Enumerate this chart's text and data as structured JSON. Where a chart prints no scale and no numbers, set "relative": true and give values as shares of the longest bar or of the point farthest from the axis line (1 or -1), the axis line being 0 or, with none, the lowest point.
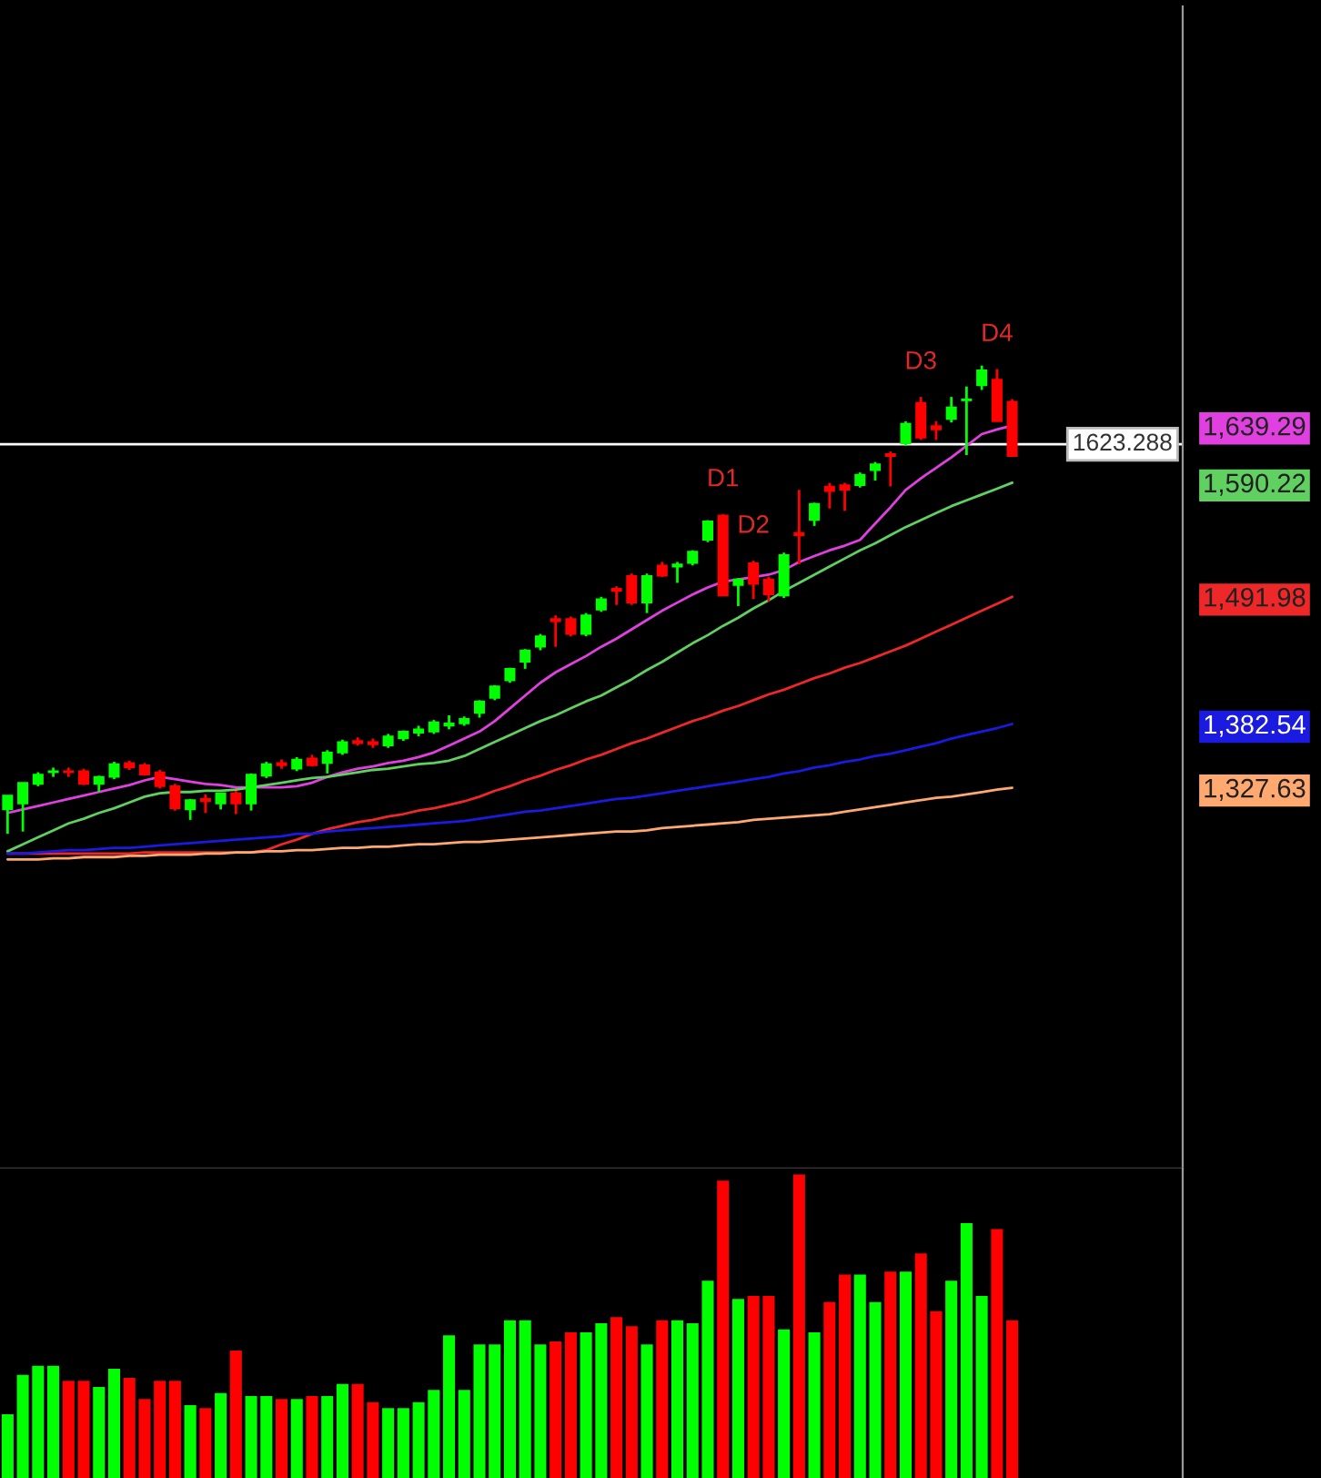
{
  "chart_data": [
    {
      "type": "candlestick",
      "categories": [
        null,
        null,
        null,
        null,
        null,
        null,
        null,
        null,
        null,
        null,
        null,
        null,
        null,
        null,
        null,
        null,
        null,
        null,
        null,
        null,
        null,
        null,
        null,
        null,
        null,
        null,
        null,
        null,
        null,
        null,
        null,
        null,
        null,
        null,
        null,
        null,
        null,
        null,
        null,
        null,
        null,
        null,
        null,
        null,
        null,
        null,
        null,
        null,
        null,
        null,
        null,
        null,
        null,
        null,
        null,
        null,
        null,
        null,
        null,
        null,
        null,
        null,
        null,
        null,
        null,
        null,
        null
      ],
      "ohlc": [
        [
          1309,
          1321,
          1288,
          1321
        ],
        [
          1314,
          1332,
          1290,
          1332
        ],
        [
          1331,
          1341,
          1329,
          1339
        ],
        [
          1341,
          1345,
          1337,
          1342
        ],
        [
          1342,
          1345,
          1337,
          1341
        ],
        [
          1342,
          1344,
          1330,
          1331
        ],
        [
          1331,
          1338,
          1324,
          1337
        ],
        [
          1337,
          1350,
          1335,
          1348
        ],
        [
          1349,
          1351,
          1343,
          1345
        ],
        [
          1347,
          1349,
          1338,
          1339
        ],
        [
          1341,
          1343,
          1327,
          1329
        ],
        [
          1329,
          1331,
          1308,
          1310
        ],
        [
          1309,
          1318,
          1300,
          1317
        ],
        [
          1318,
          1322,
          1306,
          1316
        ],
        [
          1314,
          1323,
          1309,
          1323
        ],
        [
          1323,
          1325,
          1305,
          1314
        ],
        [
          1314,
          1340,
          1308,
          1339
        ],
        [
          1338,
          1350,
          1336,
          1348
        ],
        [
          1349,
          1352,
          1344,
          1347
        ],
        [
          1344,
          1354,
          1342,
          1352
        ],
        [
          1353,
          1356,
          1346,
          1347
        ],
        [
          1349,
          1360,
          1340,
          1358
        ],
        [
          1358,
          1369,
          1356,
          1367
        ],
        [
          1368,
          1371,
          1364,
          1366
        ],
        [
          1367,
          1370,
          1362,
          1365
        ],
        [
          1364,
          1374,
          1362,
          1372
        ],
        [
          1370,
          1377,
          1368,
          1376
        ],
        [
          1375,
          1381,
          1372,
          1378
        ],
        [
          1376,
          1386,
          1374,
          1384
        ],
        [
          1381,
          1390,
          1378,
          1383
        ],
        [
          1383,
          1389,
          1381,
          1387
        ],
        [
          1392,
          1403,
          1388,
          1402
        ],
        [
          1405,
          1416,
          1403,
          1415
        ],
        [
          1420,
          1431,
          1418,
          1430
        ],
        [
          1436,
          1447,
          1430,
          1446
        ],
        [
          1449,
          1460,
          1446,
          1458
        ],
        [
          1473,
          1476,
          1449,
          1471
        ],
        [
          1473,
          1475,
          1458,
          1460
        ],
        [
          1460,
          1478,
          1458,
          1476
        ],
        [
          1481,
          1492,
          1479,
          1490
        ],
        [
          1499,
          1501,
          1485,
          1497
        ],
        [
          1510,
          1512,
          1485,
          1487
        ],
        [
          1487,
          1512,
          1478,
          1510
        ],
        [
          1519,
          1522,
          1509,
          1510
        ],
        [
          1518,
          1522,
          1504,
          1520
        ],
        [
          1521,
          1532,
          1519,
          1531
        ],
        [
          1541,
          1558,
          1539,
          1557
        ],
        [
          1562,
          1563,
          1493,
          1493
        ],
        [
          1502,
          1508,
          1484,
          1507
        ],
        [
          1521,
          1523,
          1490,
          1503
        ],
        [
          1507,
          1509,
          1488,
          1494
        ],
        [
          1493,
          1530,
          1491,
          1528
        ],
        [
          1547,
          1584,
          1520,
          1545
        ],
        [
          1558,
          1573,
          1553,
          1572
        ],
        [
          1587,
          1590,
          1568,
          1583
        ],
        [
          1588,
          1590,
          1566,
          1584
        ],
        [
          1588,
          1599,
          1586,
          1597
        ],
        [
          1601,
          1608,
          1592,
          1606
        ],
        [
          1615,
          1617,
          1587,
          1613
        ],
        [
          1624,
          1643,
          1622,
          1641
        ],
        [
          1659,
          1664,
          1627,
          1629
        ],
        [
          1639,
          1643,
          1627,
          1636
        ],
        [
          1645,
          1664,
          1642,
          1655
        ],
        [
          1661,
          1673,
          1614,
          1662
        ],
        [
          1674,
          1691,
          1670,
          1687
        ],
        [
          1679,
          1688,
          1643,
          1643
        ],
        [
          1660,
          1662,
          1613,
          1613
        ]
      ],
      "colors": [
        "#00ff00",
        "#00ff00",
        "#00ff00",
        "#00ff00",
        "#ff0000",
        "#ff0000",
        "#00ff00",
        "#00ff00",
        "#ff0000",
        "#ff0000",
        "#ff0000",
        "#ff0000",
        "#00ff00",
        "#ff0000",
        "#00ff00",
        "#ff0000",
        "#00ff00",
        "#00ff00",
        "#ff0000",
        "#00ff00",
        "#ff0000",
        "#00ff00",
        "#00ff00",
        "#ff0000",
        "#ff0000",
        "#00ff00",
        "#00ff00",
        "#00ff00",
        "#00ff00",
        "#00ff00",
        "#00ff00",
        "#00ff00",
        "#00ff00",
        "#00ff00",
        "#00ff00",
        "#00ff00",
        "#ff0000",
        "#ff0000",
        "#00ff00",
        "#00ff00",
        "#ff0000",
        "#ff0000",
        "#00ff00",
        "#ff0000",
        "#00ff00",
        "#00ff00",
        "#00ff00",
        "#ff0000",
        "#00ff00",
        "#ff0000",
        "#ff0000",
        "#00ff00",
        "#ff0000",
        "#00ff00",
        "#ff0000",
        "#ff0000",
        "#00ff00",
        "#00ff00",
        "#ff0000",
        "#00ff00",
        "#ff0000",
        "#ff0000",
        "#00ff00",
        "#00ff00",
        "#00ff00",
        "#ff0000",
        "#ff0000"
      ],
      "value_labels": [
        null,
        null,
        null,
        null,
        null,
        null,
        null,
        null,
        null,
        null,
        null,
        null,
        null,
        null,
        null,
        null,
        null,
        null,
        null,
        null,
        null,
        null,
        null,
        null,
        null,
        null,
        null,
        null,
        null,
        null,
        null,
        null,
        null,
        null,
        null,
        null,
        null,
        null,
        null,
        null,
        null,
        null,
        null,
        null,
        null,
        null,
        null,
        "D1",
        null,
        "D2",
        null,
        null,
        null,
        null,
        null,
        null,
        null,
        null,
        null,
        null,
        "D3",
        null,
        null,
        null,
        null,
        "D4",
        null
      ],
      "series": [
        {
          "type": "line",
          "color": "#e040e0",
          "values": [
            1306,
            1309,
            1312,
            1315,
            1318,
            1321,
            1324,
            1327,
            1330,
            1334,
            1337,
            1335,
            1333,
            1331,
            1330,
            1328,
            1328,
            1328,
            1328,
            1329,
            1332,
            1337,
            1341,
            1344,
            1346,
            1349,
            1351,
            1354,
            1358,
            1364,
            1370,
            1376,
            1385,
            1396,
            1407,
            1418,
            1427,
            1434,
            1441,
            1449,
            1456,
            1464,
            1472,
            1480,
            1487,
            1494,
            1500,
            1505,
            1507,
            1509,
            1511,
            1515,
            1522,
            1527,
            1532,
            1536,
            1541,
            1555,
            1569,
            1584,
            1594,
            1603,
            1612,
            1622,
            1632,
            1636,
            1639.29
          ]
        },
        {
          "type": "line",
          "color": "#60d060",
          "values": [
            1273,
            1279,
            1285,
            1291,
            1297,
            1301,
            1306,
            1310,
            1315,
            1320,
            1323,
            1324,
            1324,
            1325,
            1325,
            1326,
            1328,
            1330,
            1332,
            1334,
            1336,
            1337,
            1339,
            1341,
            1343,
            1344,
            1346,
            1348,
            1349,
            1351,
            1355,
            1361,
            1367,
            1373,
            1379,
            1385,
            1390,
            1396,
            1402,
            1407,
            1414,
            1421,
            1429,
            1436,
            1444,
            1452,
            1459,
            1467,
            1474,
            1482,
            1489,
            1497,
            1504,
            1511,
            1518,
            1525,
            1532,
            1538,
            1545,
            1552,
            1558,
            1564,
            1570,
            1575,
            1580,
            1585,
            1590.22
          ]
        },
        {
          "type": "line",
          "color": "#ee2828",
          "values": [
            1271,
            1271,
            1271,
            1271,
            1271,
            1271,
            1271,
            1271,
            1271,
            1272,
            1272,
            1272,
            1272,
            1272,
            1272,
            1272,
            1272,
            1274,
            1279,
            1283,
            1288,
            1292,
            1295,
            1298,
            1300,
            1303,
            1305,
            1308,
            1310,
            1313,
            1316,
            1320,
            1325,
            1329,
            1334,
            1338,
            1343,
            1347,
            1352,
            1356,
            1361,
            1366,
            1370,
            1375,
            1380,
            1385,
            1389,
            1394,
            1398,
            1403,
            1408,
            1412,
            1417,
            1422,
            1426,
            1431,
            1435,
            1440,
            1445,
            1450,
            1456,
            1462,
            1468,
            1474,
            1480,
            1486,
            1491.98
          ]
        },
        {
          "type": "line",
          "color": "#1a1ae0",
          "values": [
            1271,
            1271,
            1272,
            1273,
            1274,
            1274,
            1275,
            1276,
            1276,
            1277,
            1278,
            1279,
            1280,
            1281,
            1282,
            1283,
            1284,
            1285,
            1286,
            1288,
            1288,
            1290,
            1291,
            1292,
            1293,
            1294,
            1295,
            1296,
            1297,
            1298,
            1299,
            1301,
            1303,
            1305,
            1307,
            1308,
            1310,
            1312,
            1314,
            1316,
            1318,
            1319,
            1321,
            1323,
            1325,
            1327,
            1329,
            1331,
            1333,
            1335,
            1337,
            1340,
            1342,
            1345,
            1347,
            1350,
            1352,
            1355,
            1357,
            1360,
            1363,
            1366,
            1370,
            1373,
            1376,
            1379,
            1382.54
          ]
        },
        {
          "type": "line",
          "color": "#ffa870",
          "values": [
            1266,
            1266,
            1266,
            1267,
            1267,
            1268,
            1268,
            1268,
            1269,
            1269,
            1270,
            1270,
            1270,
            1271,
            1271,
            1272,
            1272,
            1273,
            1273,
            1274,
            1274,
            1275,
            1276,
            1276,
            1277,
            1277,
            1278,
            1279,
            1279,
            1280,
            1281,
            1281,
            1282,
            1283,
            1284,
            1285,
            1286,
            1287,
            1288,
            1289,
            1290,
            1290,
            1291,
            1293,
            1294,
            1295,
            1296,
            1297,
            1298,
            1300,
            1301,
            1302,
            1303,
            1304,
            1305,
            1307,
            1309,
            1311,
            1313,
            1315,
            1317,
            1319,
            1320,
            1322,
            1324,
            1326,
            1327.63
          ]
        }
      ],
      "ylim": [
        1000,
        2000
      ],
      "yticks": [
        {
          "value": 1639.29,
          "label": "1,639.29"
        },
        {
          "value": 1590.22,
          "label": "1,590.22"
        },
        {
          "value": 1491.98,
          "label": "1,491.98"
        },
        {
          "value": 1382.54,
          "label": "1,382.54"
        },
        {
          "value": 1327.63,
          "label": "1,327.63"
        }
      ],
      "ref_lines": [
        {
          "axis": "y",
          "value": 1623.288,
          "label": "1623.288",
          "color": "#ffffff"
        }
      ],
      "tick_labels": "y"
    },
    {
      "type": "bar",
      "relative": true,
      "tick_labels": false,
      "categories": [
        null,
        null,
        null,
        null,
        null,
        null,
        null,
        null,
        null,
        null,
        null,
        null,
        null,
        null,
        null,
        null,
        null,
        null,
        null,
        null,
        null,
        null,
        null,
        null,
        null,
        null,
        null,
        null,
        null,
        null,
        null,
        null,
        null,
        null,
        null,
        null,
        null,
        null,
        null,
        null,
        null,
        null,
        null,
        null,
        null,
        null,
        null,
        null,
        null,
        null,
        null,
        null,
        null,
        null,
        null,
        null,
        null,
        null,
        null,
        null,
        null,
        null,
        null,
        null,
        null,
        null,
        null
      ],
      "values": [
        0.21,
        0.34,
        0.37,
        0.37,
        0.32,
        0.32,
        0.3,
        0.36,
        0.33,
        0.26,
        0.32,
        0.32,
        0.24,
        0.23,
        0.28,
        0.42,
        0.27,
        0.27,
        0.26,
        0.26,
        0.27,
        0.27,
        0.31,
        0.31,
        0.25,
        0.23,
        0.23,
        0.25,
        0.29,
        0.47,
        0.29,
        0.44,
        0.44,
        0.52,
        0.52,
        0.44,
        0.45,
        0.48,
        0.48,
        0.51,
        0.53,
        0.5,
        0.44,
        0.52,
        0.52,
        0.51,
        0.65,
        0.98,
        0.59,
        0.6,
        0.6,
        0.49,
        1,
        0.48,
        0.58,
        0.67,
        0.67,
        0.58,
        0.68,
        0.68,
        0.74,
        0.55,
        0.65,
        0.84,
        0.6,
        0.82,
        0.52
      ],
      "colors": [
        "#00ff00",
        "#00ff00",
        "#00ff00",
        "#00ff00",
        "#ff0000",
        "#ff0000",
        "#00ff00",
        "#00ff00",
        "#ff0000",
        "#ff0000",
        "#ff0000",
        "#ff0000",
        "#00ff00",
        "#ff0000",
        "#00ff00",
        "#ff0000",
        "#00ff00",
        "#00ff00",
        "#ff0000",
        "#00ff00",
        "#ff0000",
        "#00ff00",
        "#00ff00",
        "#ff0000",
        "#ff0000",
        "#00ff00",
        "#00ff00",
        "#00ff00",
        "#00ff00",
        "#00ff00",
        "#00ff00",
        "#00ff00",
        "#00ff00",
        "#00ff00",
        "#00ff00",
        "#00ff00",
        "#ff0000",
        "#ff0000",
        "#00ff00",
        "#00ff00",
        "#ff0000",
        "#ff0000",
        "#00ff00",
        "#ff0000",
        "#00ff00",
        "#00ff00",
        "#00ff00",
        "#ff0000",
        "#00ff00",
        "#ff0000",
        "#ff0000",
        "#00ff00",
        "#ff0000",
        "#00ff00",
        "#ff0000",
        "#ff0000",
        "#00ff00",
        "#00ff00",
        "#ff0000",
        "#00ff00",
        "#ff0000",
        "#ff0000",
        "#00ff00",
        "#00ff00",
        "#00ff00",
        "#ff0000",
        "#ff0000"
      ]
    }
  ]
}
